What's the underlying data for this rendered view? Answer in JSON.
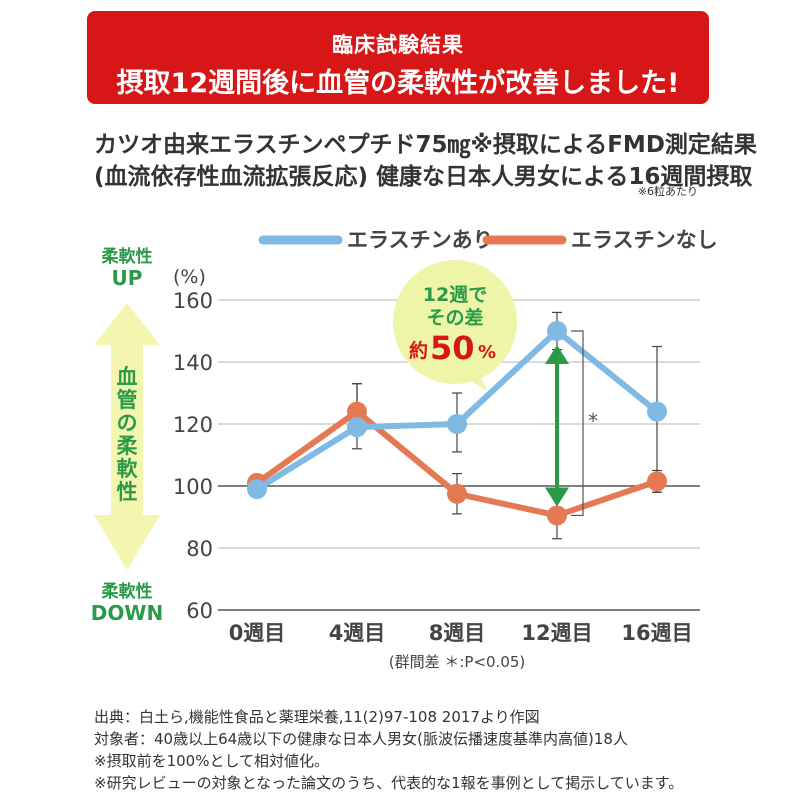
{
  "banner": {
    "subtitle": "臨床試験結果",
    "headline": "摂取12週間後に血管の柔軟性が改善しました!"
  },
  "heading": {
    "line1": "カツオ由来エラスチンペプチド75㎎※摂取によるFMD測定結果",
    "line2": "(血流依存性血流拡張反応) 健康な日本人男女による16週間摂取",
    "note": "※6粒あたり"
  },
  "side_arrow": {
    "up_label": "柔軟性",
    "up_sub": "UP",
    "down_label": "柔軟性",
    "down_sub": "DOWN",
    "center_chars": [
      "血",
      "管",
      "の",
      "柔",
      "軟",
      "性"
    ]
  },
  "callout": {
    "line1": "12週で",
    "line2": "その差",
    "prefix": "約",
    "value": "50",
    "suffix": "%"
  },
  "chart_data": {
    "type": "line",
    "title": "カツオ由来エラスチンペプチド75㎎※摂取によるFMD測定結果",
    "ylabel": "(%)",
    "xlabel": "(群間差 ＊:P<0.05)",
    "ylim": [
      60,
      160
    ],
    "yticks": [
      60,
      80,
      100,
      120,
      140,
      160
    ],
    "categories": [
      "0週目",
      "4週目",
      "8週目",
      "12週目",
      "16週目"
    ],
    "series": [
      {
        "name": "エラスチンあり",
        "color": "#7fb9e4",
        "values": [
          99,
          119,
          120,
          150,
          124
        ],
        "err_low": [
          99,
          112,
          111,
          144,
          98
        ],
        "err_high": [
          99,
          133,
          130,
          156,
          145
        ]
      },
      {
        "name": "エラスチンなし",
        "color": "#e57954",
        "values": [
          101,
          124,
          97.5,
          90.5,
          101.5
        ],
        "err_low": [
          101,
          118,
          91,
          83,
          98
        ],
        "err_high": [
          101,
          133,
          104,
          98,
          105
        ]
      }
    ],
    "significance": {
      "category": "12週目",
      "symbol": "*"
    },
    "diff_arrow_color": "#2a9a48"
  },
  "footnotes": [
    "出典：白土ら,機能性食品と薬理栄養,11(2)97-108 2017より作図",
    "対象者：40歳以上64歳以下の健康な日本人男女(脈波伝播速度基準内高値)18人",
    "※摂取前を100%として相対値化。",
    "※研究レビューの対象となった論文のうち、代表的な1報を事例として掲示しています。"
  ],
  "colors": {
    "banner": "#d71618",
    "axis_green": "#2a9a48",
    "arrow_fill": "#f4f6b0",
    "callout_fill": "#eef4a8",
    "callout_red": "#d71618"
  }
}
